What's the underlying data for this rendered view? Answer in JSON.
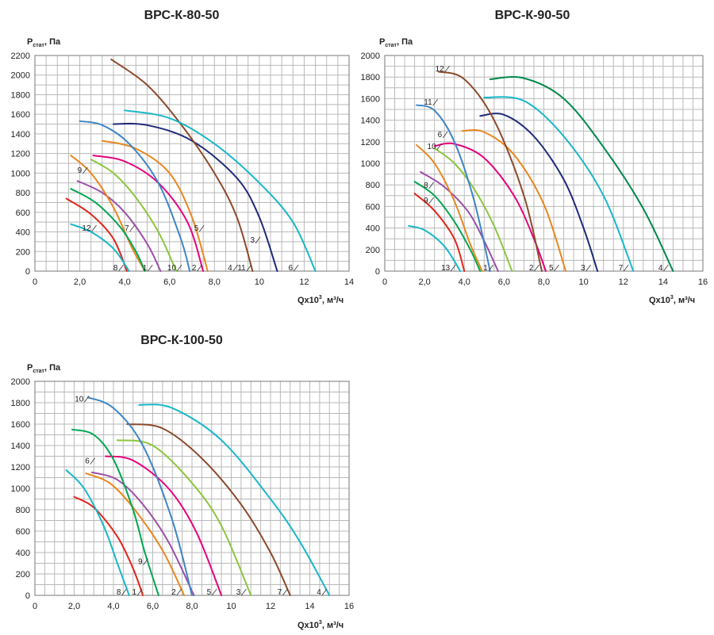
{
  "chart_data": [
    {
      "type": "line",
      "title": "ВРС-К-80-50",
      "ylabel_main": "P",
      "ylabel_sub": "стат",
      "ylabel_unit": ", Па",
      "xlabel_main": "Qx10",
      "xlabel_sup": "3",
      "xlabel_unit": ", м³/ч",
      "xlim": [
        0,
        14
      ],
      "ylim": [
        0,
        2200
      ],
      "x_ticks": [
        "0",
        "2,0",
        "4,0",
        "6,0",
        "8,0",
        "10",
        "12",
        "14"
      ],
      "y_ticks": [
        "0",
        "200",
        "400",
        "600",
        "800",
        "1000",
        "1200",
        "1400",
        "1600",
        "1800",
        "2000",
        "2200"
      ],
      "series": [
        {
          "name": "1",
          "color": "#9c4fa8",
          "x": [
            1.9,
            3.0,
            4.0,
            5.0,
            5.6
          ],
          "y": [
            920,
            800,
            600,
            280,
            0
          ]
        },
        {
          "name": "2",
          "color": "#e8871e",
          "x": [
            3.0,
            4.5,
            6.0,
            7.0,
            7.7
          ],
          "y": [
            1330,
            1250,
            1000,
            550,
            0
          ]
        },
        {
          "name": "3",
          "color": "#1f2a7a",
          "x": [
            3.5,
            5.0,
            7.0,
            9.0,
            10.0,
            10.8
          ],
          "y": [
            1500,
            1490,
            1330,
            950,
            550,
            0
          ]
        },
        {
          "name": "4",
          "color": "#8b4a2b",
          "x": [
            3.4,
            5.0,
            6.5,
            8.0,
            9.0,
            9.7
          ],
          "y": [
            2160,
            1900,
            1500,
            1000,
            550,
            0
          ]
        },
        {
          "name": "5",
          "color": "#e6007e",
          "x": [
            2.6,
            4.0,
            5.5,
            6.8,
            7.5
          ],
          "y": [
            1180,
            1120,
            900,
            500,
            0
          ]
        },
        {
          "name": "6",
          "color": "#18b7c9",
          "x": [
            4.0,
            6.0,
            8.0,
            10.0,
            11.5,
            12.5
          ],
          "y": [
            1640,
            1560,
            1300,
            900,
            500,
            0
          ]
        },
        {
          "name": "7",
          "color": "#8cc63f",
          "x": [
            2.5,
            3.5,
            4.5,
            5.5,
            6.3
          ],
          "y": [
            1140,
            1000,
            750,
            400,
            0
          ]
        },
        {
          "name": "8",
          "color": "#e1261c",
          "x": [
            1.4,
            2.5,
            3.5,
            4.1
          ],
          "y": [
            740,
            580,
            330,
            0
          ]
        },
        {
          "name": "9",
          "color": "#e8871e",
          "x": [
            1.6,
            2.5,
            3.5,
            4.3,
            4.9
          ],
          "y": [
            1180,
            1000,
            650,
            250,
            0
          ]
        },
        {
          "name": "10",
          "color": "#3f85c6",
          "x": [
            2.0,
            3.0,
            4.2,
            5.5,
            6.5,
            6.9
          ],
          "y": [
            1530,
            1490,
            1300,
            900,
            330,
            0
          ]
        },
        {
          "name": "11",
          "color": "#18b7c9",
          "x": [
            1.6,
            2.5,
            3.5,
            4.2
          ],
          "y": [
            480,
            400,
            230,
            0
          ]
        },
        {
          "name": "12",
          "color": "#00a651",
          "x": [
            1.6,
            2.7,
            3.8,
            4.5,
            4.9
          ],
          "y": [
            840,
            700,
            450,
            200,
            0
          ]
        }
      ],
      "labels": [
        {
          "text": "1"
        },
        {
          "text": "2"
        },
        {
          "text": "3"
        },
        {
          "text": "4"
        },
        {
          "text": "5"
        },
        {
          "text": "6"
        },
        {
          "text": "7"
        },
        {
          "text": "8"
        },
        {
          "text": "9"
        },
        {
          "text": "10"
        },
        {
          "text": "11"
        },
        {
          "text": "12"
        }
      ]
    },
    {
      "type": "line",
      "title": "ВРС-К-90-50",
      "ylabel_main": "P",
      "ylabel_sub": "стат",
      "ylabel_unit": ", Па",
      "xlabel_main": "Qx10",
      "xlabel_sup": "3",
      "xlabel_unit": ", м³/ч",
      "xlim": [
        0,
        16
      ],
      "ylim": [
        0,
        2000
      ],
      "x_ticks": [
        "0",
        "2,0",
        "4,0",
        "6,0",
        "8,0",
        "10",
        "12",
        "14",
        "16"
      ],
      "y_ticks": [
        "0",
        "200",
        "400",
        "600",
        "800",
        "1000",
        "1200",
        "1400",
        "1600",
        "1800",
        "2000"
      ],
      "series": [
        {
          "name": "1",
          "color": "#9c4fa8",
          "x": [
            1.8,
            3.0,
            4.2,
            5.0,
            5.7
          ],
          "y": [
            920,
            780,
            550,
            280,
            0
          ]
        },
        {
          "name": "2",
          "color": "#e6007e",
          "x": [
            2.5,
            3.5,
            5.0,
            6.5,
            7.5,
            8.1
          ],
          "y": [
            1160,
            1180,
            1050,
            700,
            300,
            0
          ]
        },
        {
          "name": "3",
          "color": "#1f2a7a",
          "x": [
            4.8,
            6.0,
            7.5,
            9.0,
            10.0,
            10.7
          ],
          "y": [
            1440,
            1450,
            1250,
            850,
            400,
            0
          ]
        },
        {
          "name": "4",
          "color": "#00884a",
          "x": [
            5.3,
            7.0,
            9.0,
            11.0,
            13.0,
            14.5
          ],
          "y": [
            1780,
            1790,
            1600,
            1150,
            580,
            0
          ]
        },
        {
          "name": "5",
          "color": "#e8871e",
          "x": [
            3.9,
            5.0,
            6.5,
            8.0,
            9.1
          ],
          "y": [
            1300,
            1290,
            1080,
            620,
            0
          ]
        },
        {
          "name": "6",
          "color": "#8cc63f",
          "x": [
            2.5,
            3.5,
            4.5,
            5.5,
            6.4
          ],
          "y": [
            1140,
            1000,
            760,
            420,
            0
          ]
        },
        {
          "name": "7",
          "color": "#18b7c9",
          "x": [
            5.0,
            7.0,
            9.0,
            11.0,
            12.5
          ],
          "y": [
            1610,
            1580,
            1250,
            700,
            0
          ]
        },
        {
          "name": "8",
          "color": "#00a651",
          "x": [
            1.5,
            2.5,
            3.5,
            4.3,
            4.8
          ],
          "y": [
            830,
            700,
            460,
            200,
            0
          ]
        },
        {
          "name": "9",
          "color": "#e1261c",
          "x": [
            1.5,
            2.5,
            3.5,
            4.0
          ],
          "y": [
            720,
            560,
            300,
            0
          ]
        },
        {
          "name": "10",
          "color": "#e8871e",
          "x": [
            1.6,
            2.5,
            3.5,
            4.3,
            4.9
          ],
          "y": [
            1170,
            1000,
            650,
            250,
            0
          ]
        },
        {
          "name": "11",
          "color": "#3f85c6",
          "x": [
            1.6,
            2.5,
            3.5,
            4.5,
            5.3
          ],
          "y": [
            1540,
            1490,
            1200,
            650,
            0
          ]
        },
        {
          "name": "12",
          "color": "#8b4a2b",
          "x": [
            2.7,
            4.0,
            5.5,
            7.0,
            7.9
          ],
          "y": [
            1850,
            1780,
            1400,
            700,
            0
          ]
        },
        {
          "name": "13",
          "color": "#18b7c9",
          "x": [
            1.2,
            2.0,
            3.0,
            3.8
          ],
          "y": [
            420,
            380,
            230,
            0
          ]
        }
      ],
      "labels": [
        {
          "text": "1"
        },
        {
          "text": "2"
        },
        {
          "text": "3"
        },
        {
          "text": "4"
        },
        {
          "text": "5"
        },
        {
          "text": "6"
        },
        {
          "text": "7"
        },
        {
          "text": "8"
        },
        {
          "text": "9"
        },
        {
          "text": "10"
        },
        {
          "text": "11"
        },
        {
          "text": "12"
        },
        {
          "text": "13"
        }
      ]
    },
    {
      "type": "line",
      "title": "ВРС-К-100-50",
      "ylabel_main": "P",
      "ylabel_sub": "стат",
      "ylabel_unit": ", Па",
      "xlabel_main": "Qx10",
      "xlabel_sup": "3",
      "xlabel_unit": ", м³/ч",
      "xlim": [
        0,
        16
      ],
      "ylim": [
        0,
        2000
      ],
      "x_ticks": [
        "0",
        "2,0",
        "4,0",
        "6,0",
        "8,0",
        "10",
        "12",
        "14",
        "16"
      ],
      "y_ticks": [
        "0",
        "200",
        "400",
        "600",
        "800",
        "1000",
        "1200",
        "1400",
        "1600",
        "1800",
        "2000"
      ],
      "series": [
        {
          "name": "1",
          "color": "#e1261c",
          "x": [
            2.0,
            3.0,
            4.2,
            5.0,
            5.5
          ],
          "y": [
            920,
            820,
            550,
            250,
            0
          ]
        },
        {
          "name": "2",
          "color": "#e8871e",
          "x": [
            2.6,
            3.8,
            5.0,
            6.5,
            7.6
          ],
          "y": [
            1140,
            1050,
            820,
            420,
            0
          ]
        },
        {
          "name": "3",
          "color": "#8cc63f",
          "x": [
            4.2,
            6.0,
            8.0,
            9.5,
            11.0
          ],
          "y": [
            1450,
            1400,
            1050,
            650,
            0
          ]
        },
        {
          "name": "4",
          "color": "#18b7c9",
          "x": [
            5.3,
            7.0,
            9.5,
            12.0,
            13.5,
            15.0
          ],
          "y": [
            1780,
            1750,
            1450,
            900,
            500,
            0
          ]
        },
        {
          "name": "5",
          "color": "#e6007e",
          "x": [
            3.6,
            5.0,
            6.8,
            8.2,
            9.5
          ],
          "y": [
            1300,
            1260,
            1000,
            600,
            0
          ]
        },
        {
          "name": "6",
          "color": "#9c4fa8",
          "x": [
            2.9,
            4.2,
            5.5,
            6.8,
            8.1
          ],
          "y": [
            1150,
            1080,
            850,
            500,
            0
          ]
        },
        {
          "name": "7",
          "color": "#8b4a2b",
          "x": [
            4.7,
            6.5,
            8.5,
            10.5,
            12.0,
            13.0
          ],
          "y": [
            1600,
            1560,
            1280,
            850,
            400,
            0
          ]
        },
        {
          "name": "8",
          "color": "#18b7c9",
          "x": [
            1.6,
            2.5,
            3.5,
            4.2,
            4.8
          ],
          "y": [
            1170,
            1000,
            650,
            300,
            0
          ]
        },
        {
          "name": "9",
          "color": "#00a651",
          "x": [
            1.9,
            3.0,
            4.0,
            5.0,
            5.6,
            6.3
          ],
          "y": [
            1550,
            1500,
            1270,
            800,
            400,
            0
          ]
        },
        {
          "name": "10",
          "color": "#3f85c6",
          "x": [
            2.7,
            4.0,
            5.5,
            7.0,
            8.0
          ],
          "y": [
            1850,
            1750,
            1400,
            700,
            0
          ]
        }
      ],
      "labels": [
        {
          "text": "1"
        },
        {
          "text": "2"
        },
        {
          "text": "3"
        },
        {
          "text": "4"
        },
        {
          "text": "5"
        },
        {
          "text": "6"
        },
        {
          "text": "7"
        },
        {
          "text": "8"
        },
        {
          "text": "9"
        },
        {
          "text": "10"
        }
      ]
    }
  ]
}
